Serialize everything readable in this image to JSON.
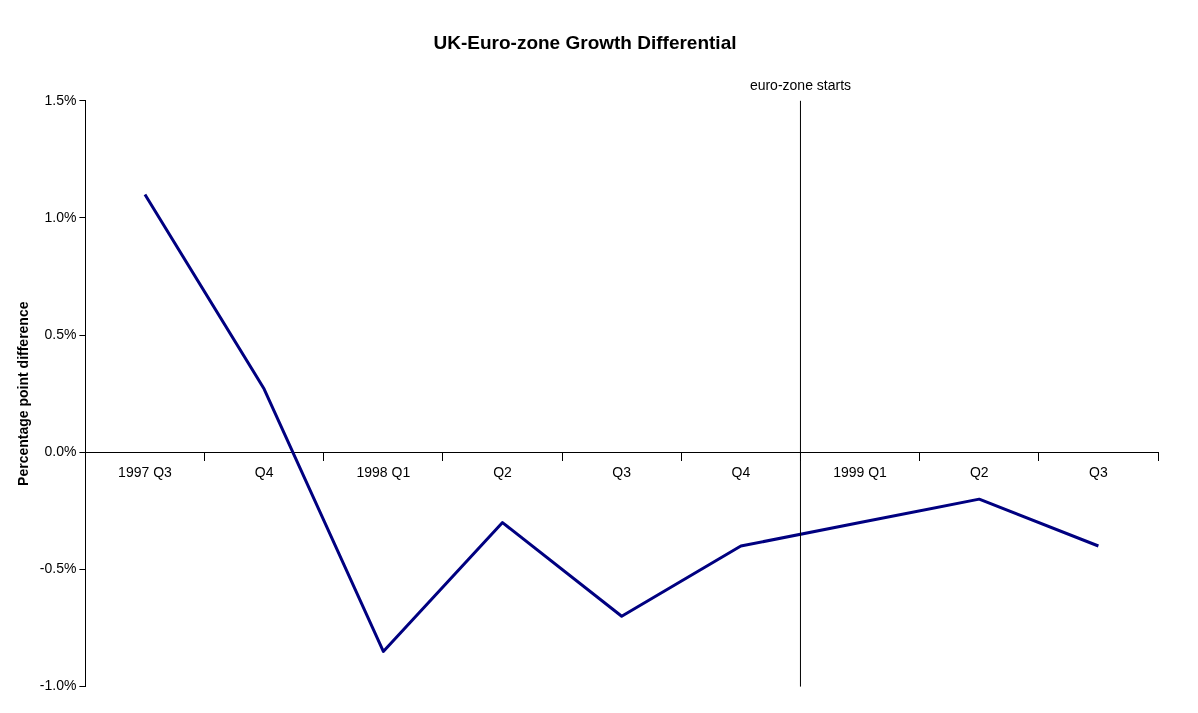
{
  "chart_data": {
    "type": "line",
    "title": "UK-Euro-zone Growth Differential",
    "ylabel": "Percentage point difference",
    "categories": [
      "1997 Q3",
      "Q4",
      "1998 Q1",
      "Q2",
      "Q3",
      "Q4",
      "1999 Q1",
      "Q2",
      "Q3"
    ],
    "series": [
      {
        "color": "#000080",
        "values": [
          1.1,
          0.27,
          -0.85,
          -0.3,
          -0.7,
          -0.4,
          -0.3,
          -0.2,
          -0.4
        ]
      }
    ],
    "ylim": [
      -1,
      1.5
    ],
    "yticks": [
      {
        "value": -1,
        "label": "-1.0%"
      },
      {
        "value": -0.5,
        "label": "-0.5%"
      },
      {
        "value": 0,
        "label": "0.0%"
      },
      {
        "value": 0.5,
        "label": "0.5%"
      },
      {
        "value": 1,
        "label": "1.0%"
      },
      {
        "value": 1.5,
        "label": "1.5%"
      }
    ],
    "annotations": [
      "euro-zone starts"
    ],
    "grid": false,
    "legend": false,
    "marker": "none",
    "line_style": "solid"
  }
}
